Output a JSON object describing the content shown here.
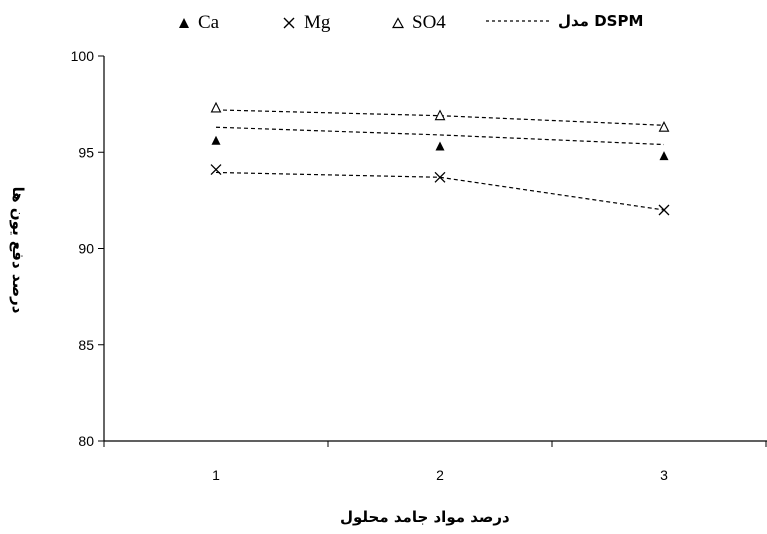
{
  "chart_data": {
    "type": "scatter",
    "categories": [
      "1",
      "2",
      "3"
    ],
    "xlabel": "درصد مواد جامد محلول",
    "ylabel": "درصد دفع یون ها",
    "ylim": [
      80,
      100
    ],
    "yticks": [
      "80",
      "85",
      "90",
      "95",
      "100"
    ],
    "series": [
      {
        "name": "Ca",
        "marker": "filled-triangle",
        "values": [
          95.6,
          95.3,
          94.8
        ]
      },
      {
        "name": "Mg",
        "marker": "x",
        "values": [
          94.1,
          93.7,
          92.0
        ]
      },
      {
        "name": "SO4",
        "marker": "open-triangle",
        "values": [
          97.3,
          96.9,
          96.3
        ]
      }
    ],
    "model": {
      "name": "DSPM مدل",
      "style": "dashed",
      "lines": [
        {
          "for": "SO4",
          "values": [
            97.2,
            96.9,
            96.4
          ]
        },
        {
          "for": "Ca",
          "values": [
            96.3,
            95.9,
            95.4
          ]
        },
        {
          "for": "Mg",
          "values": [
            93.95,
            93.7,
            92.0
          ]
        }
      ]
    },
    "grid": false,
    "legend_position": "top",
    "colors": {
      "marks": "#000000",
      "background": "#ffffff"
    }
  }
}
